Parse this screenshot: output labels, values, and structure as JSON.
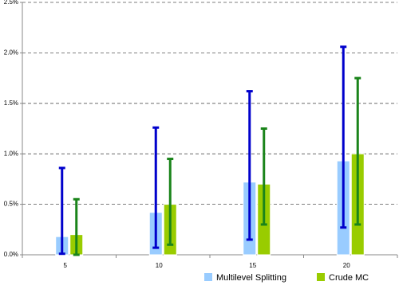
{
  "chart_data": {
    "type": "bar",
    "categories": [
      "5",
      "10",
      "15",
      "20"
    ],
    "series": [
      {
        "name": "Multilevel Splitting",
        "color": "#99ccff",
        "error_color": "#0000cc",
        "values": [
          0.18,
          0.42,
          0.72,
          0.93
        ],
        "low": [
          0.01,
          0.07,
          0.15,
          0.27
        ],
        "high": [
          0.86,
          1.26,
          1.62,
          2.06
        ]
      },
      {
        "name": "Crude MC",
        "color": "#99cc00",
        "error_color": "#1a841a",
        "values": [
          0.2,
          0.5,
          0.7,
          1.0
        ],
        "low": [
          0.0,
          0.1,
          0.3,
          0.3
        ],
        "high": [
          0.55,
          0.95,
          1.25,
          1.75
        ]
      }
    ],
    "ylim": [
      0,
      2.5
    ],
    "yticks": [
      {
        "value": 0,
        "label": "0.0%"
      },
      {
        "value": 0.5,
        "label": "0.5%"
      },
      {
        "value": 1.0,
        "label": "1.0%"
      },
      {
        "value": 1.5,
        "label": "1.5%"
      },
      {
        "value": 2.0,
        "label": "2.0%"
      },
      {
        "value": 2.5,
        "label": "2.5%"
      }
    ],
    "grid": true
  }
}
